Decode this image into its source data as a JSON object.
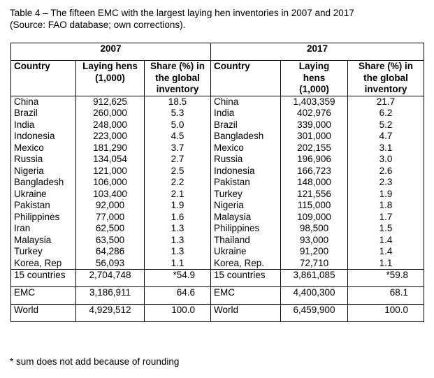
{
  "caption": {
    "line1": "Table 4 – The fifteen EMC with the largest laying hen inventories in 2007 and 2017",
    "line2": "(Source: FAO database; own corrections)."
  },
  "table": {
    "years": [
      "2007",
      "2017"
    ],
    "headers_2007": {
      "country": "Country",
      "hens": [
        "Laying hens",
        "(1,000)"
      ],
      "share": [
        "Share (%) in",
        "the global",
        "inventory"
      ]
    },
    "headers_2017": {
      "country": "Country",
      "hens": [
        "Laying",
        "hens",
        "(1,000)"
      ],
      "share": [
        "Share (%) in",
        "the global",
        "inventory"
      ]
    },
    "rows_2007": [
      [
        "China",
        "912,625",
        "18.5"
      ],
      [
        "Brazil",
        "260,000",
        "5.3"
      ],
      [
        "India",
        "248,000",
        "5.0"
      ],
      [
        "Indonesia",
        "223,000",
        "4.5"
      ],
      [
        "Mexico",
        "181,290",
        "3.7"
      ],
      [
        "Russia",
        "134,054",
        "2.7"
      ],
      [
        "Nigeria",
        "121,000",
        "2.5"
      ],
      [
        "Bangladesh",
        "106,000",
        "2.2"
      ],
      [
        "Ukraine",
        "103,400",
        "2.1"
      ],
      [
        "Pakistan",
        "92,000",
        "1.9"
      ],
      [
        "Philippines",
        "77,000",
        "1.6"
      ],
      [
        "Iran",
        "62,500",
        "1.3"
      ],
      [
        "Malaysia",
        "63,500",
        "1.3"
      ],
      [
        "Turkey",
        "64,286",
        "1.3"
      ],
      [
        "Korea, Rep",
        "56,093",
        "1.1"
      ]
    ],
    "rows_2017": [
      [
        "China",
        "1,403,359",
        "21.7"
      ],
      [
        "India",
        "402,976",
        "6.2"
      ],
      [
        "Brazil",
        "339,000",
        "5.2"
      ],
      [
        "Bangladesh",
        "301,000",
        "4.7"
      ],
      [
        "Mexico",
        "202,155",
        "3.1"
      ],
      [
        "Russia",
        "196,906",
        "3.0"
      ],
      [
        "Indonesia",
        "166,723",
        "2.6"
      ],
      [
        "Pakistan",
        "148,000",
        "2.3"
      ],
      [
        "Turkey",
        "121,556",
        "1.9"
      ],
      [
        "Nigeria",
        "115,000",
        "1.8"
      ],
      [
        "Malaysia",
        "109,000",
        "1.7"
      ],
      [
        "Philippines",
        "98,500",
        "1.5"
      ],
      [
        "Thailand",
        "93,000",
        "1.4"
      ],
      [
        "Ukraine",
        "91,200",
        "1.4"
      ],
      [
        "Korea, Rep.",
        "72,710",
        "1.1"
      ]
    ],
    "totals": [
      {
        "label_2007": "15 countries",
        "hens_2007": "2,704,748",
        "share_2007": "*54.9",
        "label_2017": "15 countries",
        "hens_2017": "3,861,085",
        "share_2017": "*59.8"
      },
      {
        "label_2007": "EMC",
        "hens_2007": "3,186,911",
        "share_2007": "64.6",
        "label_2017": "EMC",
        "hens_2017": "4,400,300",
        "share_2017": "68.1"
      },
      {
        "label_2007": "World",
        "hens_2007": "4,929,512",
        "share_2007": "100.0",
        "label_2017": "World",
        "hens_2017": "6,459,900",
        "share_2017": "100.0"
      }
    ]
  },
  "footnote": "* sum does not add because of rounding"
}
